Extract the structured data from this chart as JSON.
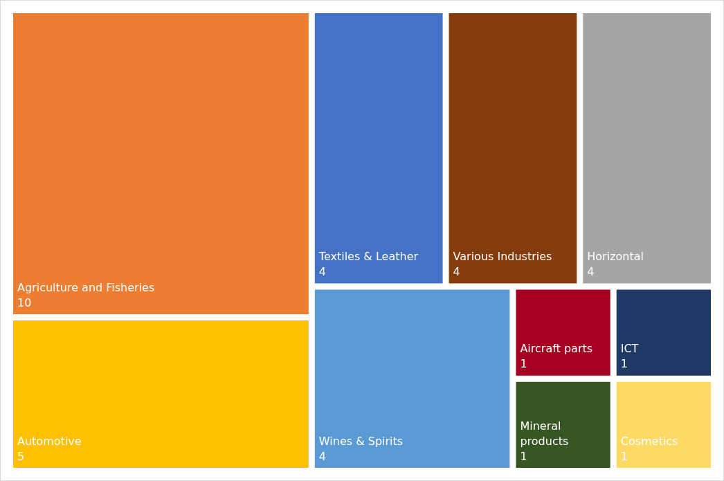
{
  "chart_data": {
    "type": "other",
    "categories": [
      "Agriculture and Fisheries",
      "Automotive",
      "Wines & Spirits",
      "Horizontal",
      "Various Industries",
      "Textiles & Leather",
      "Cosmetics",
      "ICT",
      "Mineral products",
      "Aircraft parts"
    ],
    "values": [
      10,
      5,
      4,
      4,
      4,
      4,
      1,
      1,
      1,
      1
    ],
    "colors": [
      "#ed7d31",
      "#ffc000",
      "#5b9bd5",
      "#a5a5a5",
      "#843c0c",
      "#4472c4",
      "#ffd966",
      "#203864",
      "#375623",
      "#a50021"
    ],
    "data_labels": true
  }
}
